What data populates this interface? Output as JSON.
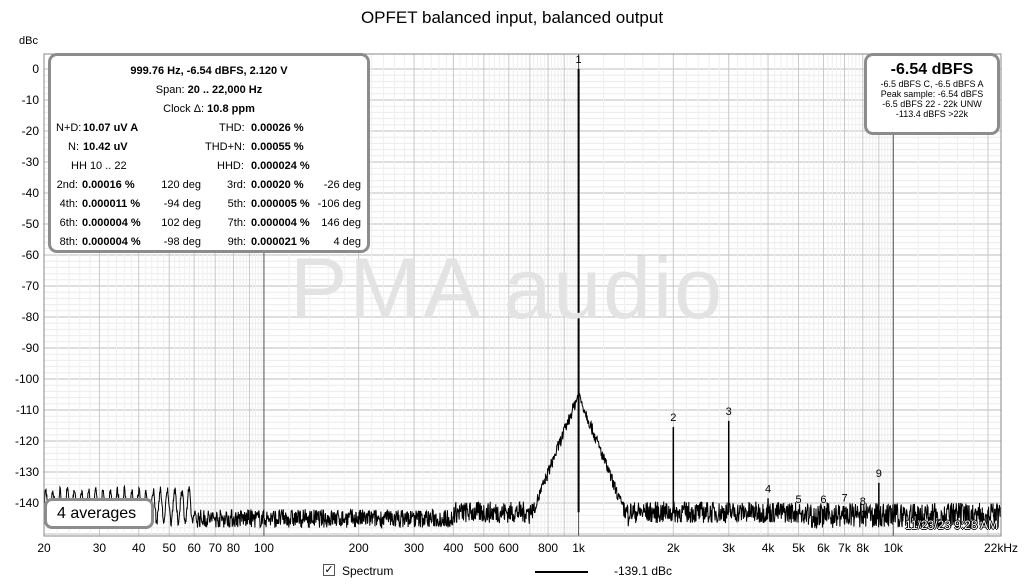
{
  "chart_data": {
    "type": "line",
    "title": "OPFET balanced input, balanced output",
    "ylabel": "dBc",
    "xlabel": "",
    "x_scale": "log",
    "xlim": [
      20,
      22000
    ],
    "ylim": [
      -150,
      5
    ],
    "x_ticks": [
      20,
      30,
      40,
      50,
      60,
      70,
      80,
      100,
      200,
      300,
      400,
      500,
      600,
      800,
      1000,
      2000,
      3000,
      4000,
      5000,
      6000,
      7000,
      8000,
      10000,
      22000
    ],
    "x_tick_labels": [
      "20",
      "30",
      "40",
      "50",
      "60",
      "70",
      "80",
      "100",
      "200",
      "300",
      "400",
      "500",
      "600",
      "800",
      "1k",
      "2k",
      "3k",
      "4k",
      "5k",
      "6k",
      "7k",
      "8k",
      "10k",
      "22kHz"
    ],
    "y_ticks": [
      0,
      -10,
      -20,
      -30,
      -40,
      -50,
      -60,
      -70,
      -80,
      -90,
      -100,
      -110,
      -120,
      -130,
      -140
    ],
    "y_tick_labels": [
      "0",
      "-10",
      "-20",
      "-30",
      "-40",
      "-50",
      "-60",
      "-70",
      "-80",
      "-90",
      "-100",
      "-110",
      "-120",
      "-130",
      "-140"
    ],
    "grid": true,
    "noise_floor": -143,
    "fundamental": {
      "label": "1",
      "x": 1000,
      "y": 0
    },
    "harmonics": [
      {
        "label": "2",
        "x": 2000,
        "y": -115.5
      },
      {
        "label": "3",
        "x": 3000,
        "y": -113.5
      },
      {
        "label": "4",
        "x": 4000,
        "y": -138.5
      },
      {
        "label": "5",
        "x": 5000,
        "y": -142
      },
      {
        "label": "6",
        "x": 6000,
        "y": -142
      },
      {
        "label": "7",
        "x": 7000,
        "y": -141.5
      },
      {
        "label": "8",
        "x": 8000,
        "y": -142.5
      },
      {
        "label": "9",
        "x": 9000,
        "y": -133.5
      }
    ],
    "series": [
      {
        "name": "Spectrum",
        "color": "#000000"
      }
    ]
  },
  "measurements": {
    "header": "999.76 Hz, -6.54 dBFS, 2.120 V",
    "span_label": "Span:",
    "span_value": "20 .. 22,000 Hz",
    "clock_label": "Clock Δ:",
    "clock_value": "10.8 ppm",
    "nd_label": "N+D:",
    "nd_value": "10.07 uV A",
    "thd_label": "THD:",
    "thd_value": "0.00026 %",
    "n_label": "N:",
    "n_value": "10.42 uV",
    "thdn_label": "THD+N:",
    "thdn_value": "0.00055 %",
    "hh_label": "HH 10 .. 22",
    "hhd_label": "HHD:",
    "hhd_value": "0.000024 %",
    "harmonic_rows": [
      {
        "l1": "2nd:",
        "v1": "0.00016 %",
        "d1": "120 deg",
        "l2": "3rd:",
        "v2": "0.00020 %",
        "d2": "-26 deg"
      },
      {
        "l1": "4th:",
        "v1": "0.000011 %",
        "d1": "-94 deg",
        "l2": "5th:",
        "v2": "0.000005 %",
        "d2": "-106 deg"
      },
      {
        "l1": "6th:",
        "v1": "0.000004 %",
        "d1": "102 deg",
        "l2": "7th:",
        "v2": "0.000004 %",
        "d2": "146 deg"
      },
      {
        "l1": "8th:",
        "v1": "0.000004 %",
        "d1": "-98 deg",
        "l2": "9th:",
        "v2": "0.000021 %",
        "d2": "4 deg"
      }
    ]
  },
  "level_box": {
    "main": "-6.54 dBFS",
    "line1": "-6.5 dBFS C, -6.5 dBFS A",
    "line2": "Peak sample: -6.54 dBFS",
    "line3": "-6.5 dBFS 22 - 22k UNW",
    "line4": "-113.4 dBFS >22k"
  },
  "averages_label": "4 averages",
  "timestamp": "11/23/23 9:28 AM",
  "watermark": "PMA audio",
  "legend": {
    "checked": true,
    "label": "Spectrum",
    "value": "-139.1 dBc"
  }
}
